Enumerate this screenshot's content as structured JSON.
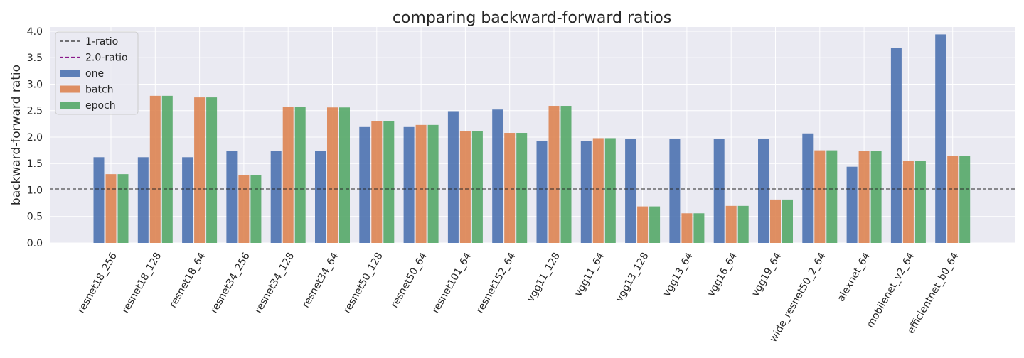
{
  "chart_data": {
    "type": "bar",
    "title": "comparing backward-forward ratios",
    "xlabel": "",
    "ylabel": "backward-forward ratio",
    "ylim": [
      0,
      4.08
    ],
    "yticks": [
      "0.0",
      "0.5",
      "1.0",
      "1.5",
      "2.0",
      "2.5",
      "3.0",
      "3.5",
      "4.0"
    ],
    "grid": true,
    "legend_position": "top-left",
    "categories": [
      "resnet18_256",
      "resnet18_128",
      "resnet18_64",
      "resnet34_256",
      "resnet34_128",
      "resnet34_64",
      "resnet50_128",
      "resnet50_64",
      "resnet101_64",
      "resnet152_64",
      "vgg11_128",
      "vgg11_64",
      "vgg13_128",
      "vgg13_64",
      "vgg16_64",
      "vgg19_64",
      "wide_resnet50_2_64",
      "alexnet_64",
      "mobilenet_v2_64",
      "efficientnet_b0_64"
    ],
    "series": [
      {
        "name": "one",
        "color": "#4c72b0",
        "values": [
          1.62,
          1.62,
          1.62,
          1.74,
          1.74,
          1.74,
          2.19,
          2.19,
          2.49,
          2.52,
          1.93,
          1.93,
          1.96,
          1.96,
          1.96,
          1.97,
          2.07,
          1.44,
          3.68,
          3.94
        ]
      },
      {
        "name": "batch",
        "color": "#dd8452",
        "values": [
          1.3,
          2.78,
          2.75,
          1.28,
          2.57,
          2.56,
          2.3,
          2.23,
          2.12,
          2.08,
          2.59,
          1.98,
          0.69,
          0.56,
          0.7,
          0.82,
          1.75,
          1.74,
          1.55,
          1.64
        ]
      },
      {
        "name": "epoch",
        "color": "#55a868",
        "values": [
          1.3,
          2.78,
          2.75,
          1.28,
          2.57,
          2.56,
          2.3,
          2.23,
          2.12,
          2.08,
          2.59,
          1.98,
          0.69,
          0.56,
          0.7,
          0.82,
          1.75,
          1.74,
          1.55,
          1.64
        ]
      }
    ],
    "reference_lines": [
      {
        "name": "1-ratio",
        "y": 1.02,
        "color": "#262626"
      },
      {
        "name": "2.0-ratio",
        "y": 2.02,
        "color": "#8b1a8b"
      }
    ]
  },
  "colors": {
    "plot_background": "#eaeaf2",
    "grid": "#ffffff",
    "text": "#262626"
  }
}
